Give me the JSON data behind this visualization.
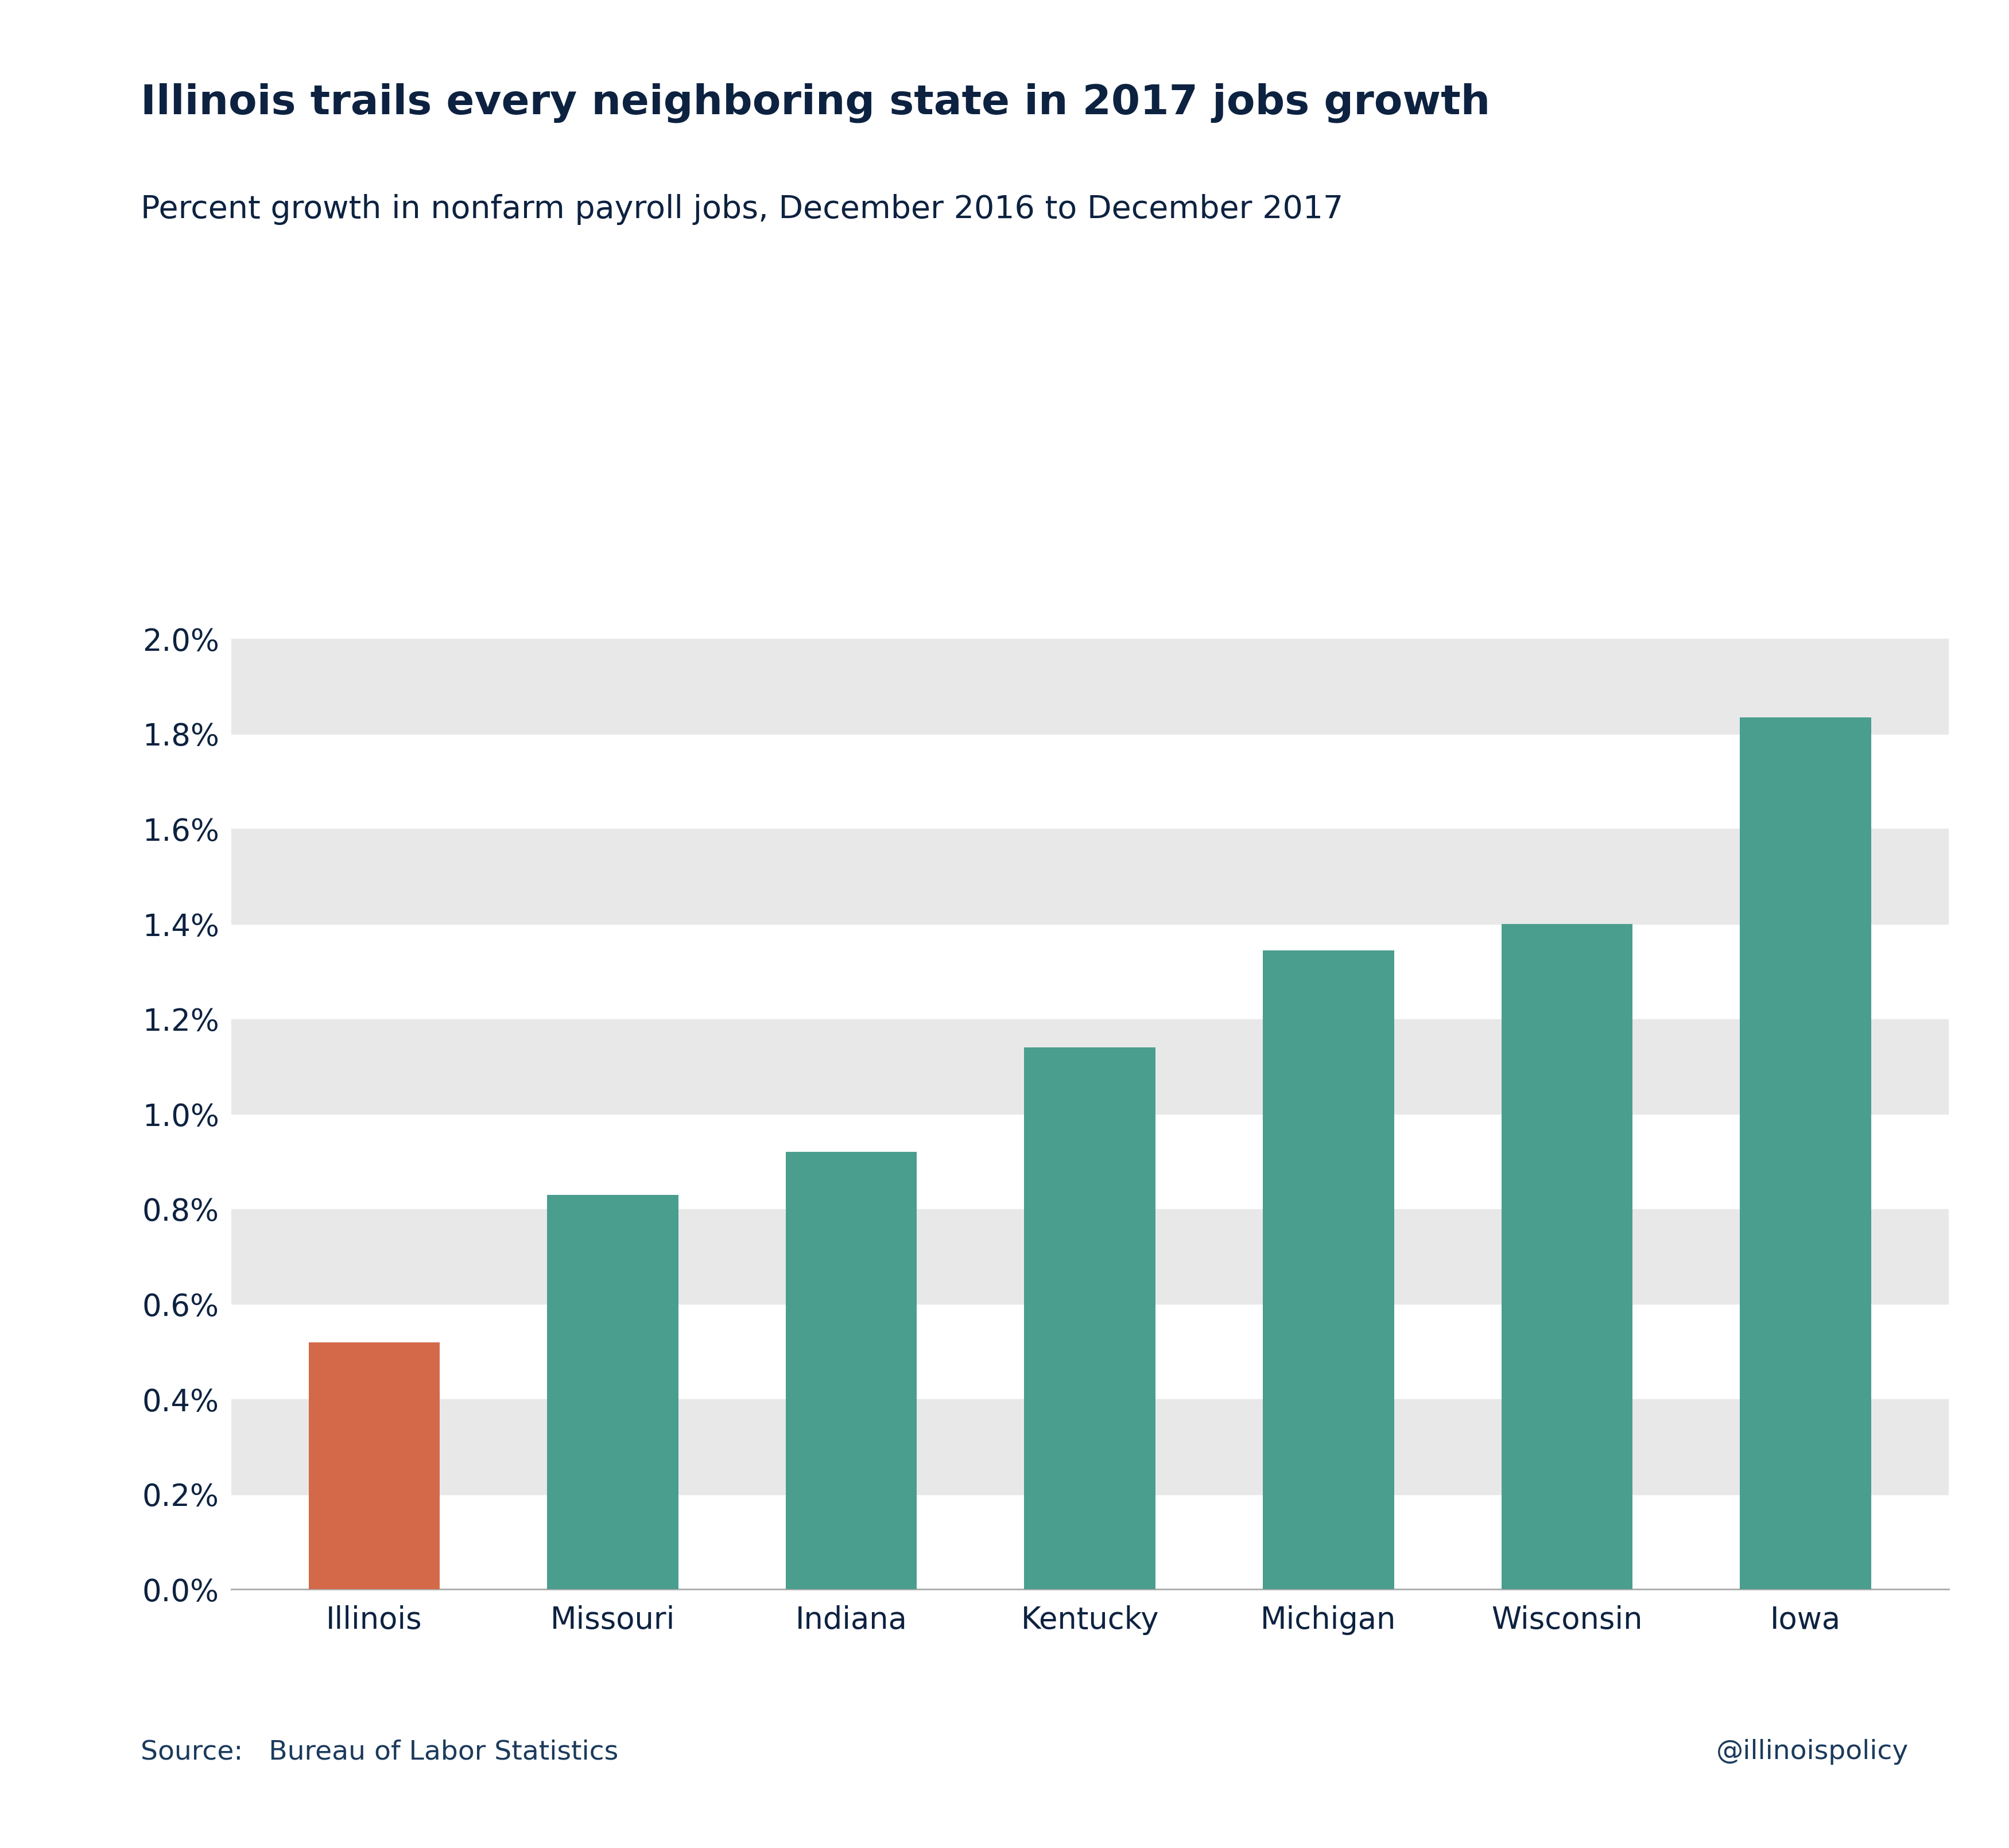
{
  "title": "Illinois trails every neighboring state in 2017 jobs growth",
  "subtitle": "Percent growth in nonfarm payroll jobs, December 2016 to December 2017",
  "categories": [
    "Illinois",
    "Missouri",
    "Indiana",
    "Kentucky",
    "Michigan",
    "Wisconsin",
    "Iowa"
  ],
  "values": [
    0.0052,
    0.0083,
    0.0092,
    0.0114,
    0.01345,
    0.014,
    0.01835
  ],
  "bar_colors": [
    "#D4694A",
    "#4A9E8E",
    "#4A9E8E",
    "#4A9E8E",
    "#4A9E8E",
    "#4A9E8E",
    "#4A9E8E"
  ],
  "title_color": "#0D2240",
  "subtitle_color": "#0D2240",
  "source_label_color": "#1B3A5C",
  "background_color": "#FFFFFF",
  "stripe_color": "#E8E8E8",
  "ylim": [
    0.0,
    0.021
  ],
  "yticks": [
    0.0,
    0.002,
    0.004,
    0.006,
    0.008,
    0.01,
    0.012,
    0.014,
    0.016,
    0.018,
    0.02
  ],
  "title_fontsize": 52,
  "subtitle_fontsize": 40,
  "tick_fontsize": 38,
  "source_fontsize": 34,
  "bar_width": 0.55,
  "source_text": "Source:   Bureau of Labor Statistics",
  "handle_text": "@illinoispolicy"
}
